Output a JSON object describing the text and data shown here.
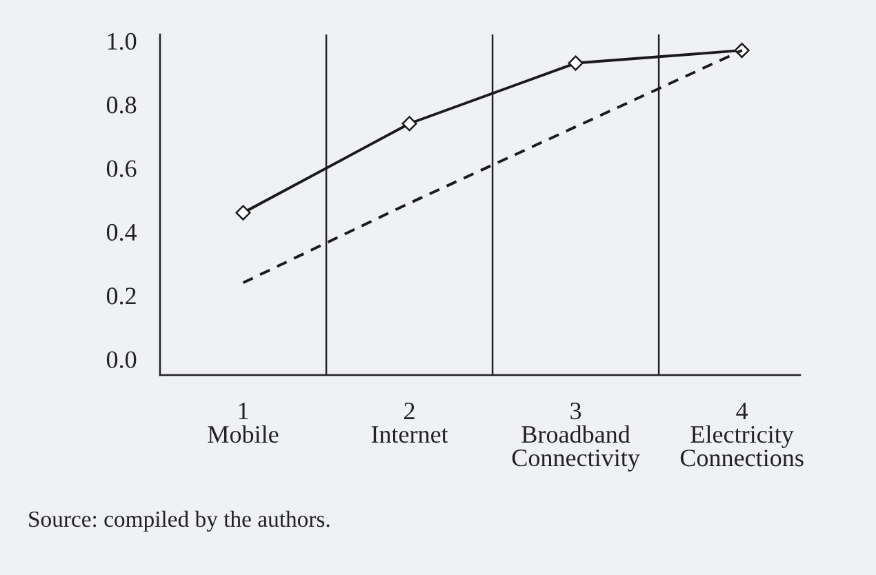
{
  "chart_data": {
    "type": "line",
    "categories": [
      "1\nMobile",
      "2\nInternet",
      "3\nBroadband\nConnectivity",
      "4\nElectricity\nConnections"
    ],
    "series": [
      {
        "color": "#1a1a1a",
        "values": [
          0.46,
          0.74,
          0.93,
          0.97
        ],
        "marker": "diamond",
        "line_style": "solid"
      },
      {
        "color": "#1a1a1a",
        "values": [
          0.24,
          0.49,
          0.73,
          0.97
        ],
        "marker": "none",
        "line_style": "dashed"
      }
    ],
    "ylim": [
      -0.05,
      1.02
    ],
    "yticks": [
      {
        "value": 0,
        "label": "0.0"
      },
      {
        "value": 0.2,
        "label": "0.2"
      },
      {
        "value": 0.4,
        "label": "0.4"
      },
      {
        "value": 0.6,
        "label": "0.6"
      },
      {
        "value": 0.8,
        "label": "0.8"
      },
      {
        "value": 1,
        "label": "1.0"
      }
    ],
    "grid": "x",
    "legend": false,
    "annotations": [
      "Source: compiled by the authors."
    ]
  }
}
